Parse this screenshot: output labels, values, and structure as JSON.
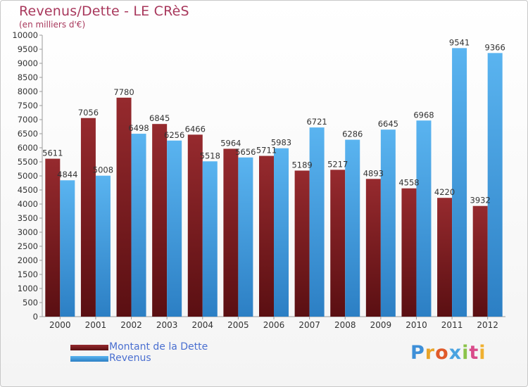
{
  "title": "Revenus/Dette - LE CRèS",
  "subtitle": "(en milliers d'€)",
  "logo": "Proxiti",
  "colors": {
    "dette": "#7a1e22",
    "revenus": "#3a98e0",
    "axis": "#9a9a9a",
    "label": "#333333",
    "title": "#a8385c",
    "legend_text": "#4a6fd0"
  },
  "chart_data": {
    "type": "bar",
    "title": "Revenus/Dette - LE CRèS",
    "subtitle": "(en milliers d'€)",
    "categories": [
      "2000",
      "2001",
      "2002",
      "2003",
      "2004",
      "2005",
      "2006",
      "2007",
      "2008",
      "2009",
      "2010",
      "2011",
      "2012"
    ],
    "series": [
      {
        "name": "Montant de la Dette",
        "values": [
          5611,
          7056,
          7780,
          6845,
          6466,
          5964,
          5711,
          5189,
          5217,
          4893,
          4558,
          4220,
          3932
        ]
      },
      {
        "name": "Revenus",
        "values": [
          4844,
          5008,
          6498,
          6256,
          5518,
          5656,
          5983,
          6721,
          6286,
          6645,
          6968,
          9541,
          9366
        ]
      }
    ],
    "ylim": [
      0,
      10000
    ],
    "ytick_step": 500,
    "grid": false,
    "legend_position": "bottom-left"
  }
}
